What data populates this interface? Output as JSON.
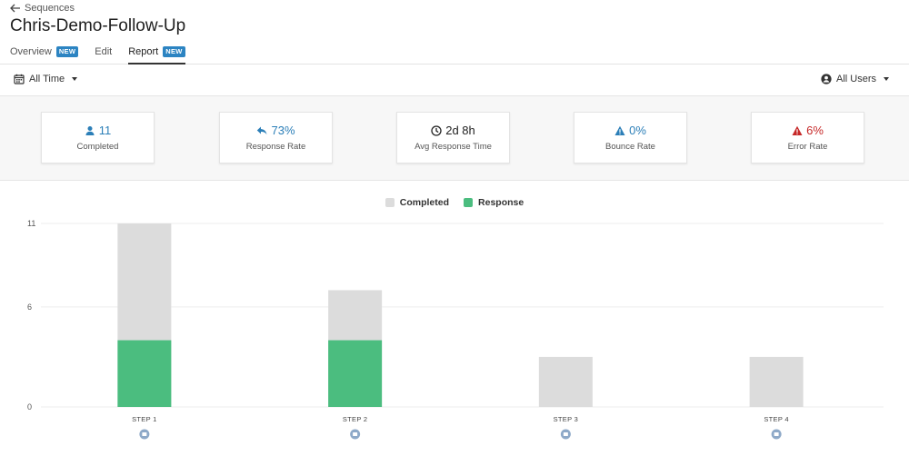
{
  "header": {
    "back_label": "Sequences",
    "title": "Chris-Demo-Follow-Up",
    "tabs": [
      {
        "label": "Overview",
        "badge": "NEW"
      },
      {
        "label": "Edit",
        "badge": ""
      },
      {
        "label": "Report",
        "badge": "NEW"
      }
    ]
  },
  "toolbar": {
    "time_filter": "All Time",
    "user_filter": "All Users"
  },
  "stats": [
    {
      "value": "11",
      "label": "Completed",
      "icon": "user-icon",
      "color": "#2c7fb8"
    },
    {
      "value": "73%",
      "label": "Response Rate",
      "icon": "reply-icon",
      "color": "#2c7fb8"
    },
    {
      "value": "2d 8h",
      "label": "Avg Response Time",
      "icon": "clock-icon",
      "color": "#222222"
    },
    {
      "value": "0%",
      "label": "Bounce Rate",
      "icon": "warning-icon",
      "color": "#2c7fb8"
    },
    {
      "value": "6%",
      "label": "Error Rate",
      "icon": "warning-icon",
      "color": "#c62828"
    }
  ],
  "chart_data": {
    "type": "bar",
    "categories": [
      "STEP 1",
      "STEP 2",
      "STEP 3",
      "STEP 4"
    ],
    "series": [
      {
        "name": "Completed",
        "values": [
          11,
          7,
          3,
          3
        ],
        "color": "#dcdcdc"
      },
      {
        "name": "Response",
        "values": [
          4,
          4,
          0,
          0
        ],
        "color": "#4bbd7f"
      }
    ],
    "yticks": [
      0,
      6,
      11
    ],
    "ylim": [
      0,
      11
    ],
    "legend": "top-center",
    "grid": true
  }
}
